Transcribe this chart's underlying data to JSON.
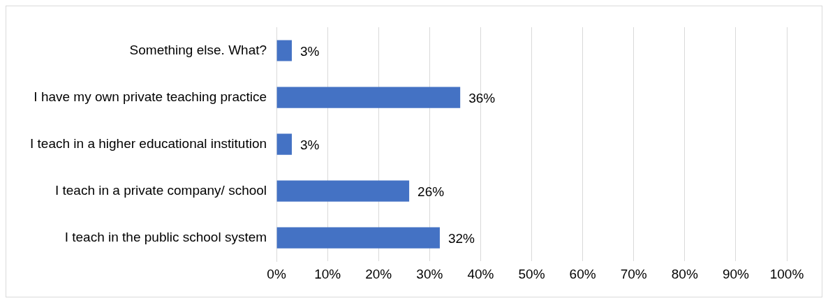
{
  "chart_data": {
    "type": "bar",
    "orientation": "horizontal",
    "categories": [
      "Something else. What?",
      "I have my own private teaching practice",
      "I teach in a higher educational institution",
      "I teach in a private company/ school",
      "I teach in the public school system"
    ],
    "values": [
      3,
      36,
      3,
      26,
      32
    ],
    "value_labels": [
      "3%",
      "36%",
      "3%",
      "26%",
      "32%"
    ],
    "color": "#4472c4",
    "xlim": [
      0,
      100
    ],
    "xticks": [
      {
        "value": 0,
        "label": "0%"
      },
      {
        "value": 10,
        "label": "10%"
      },
      {
        "value": 20,
        "label": "20%"
      },
      {
        "value": 30,
        "label": "30%"
      },
      {
        "value": 40,
        "label": "40%"
      },
      {
        "value": 50,
        "label": "50%"
      },
      {
        "value": 60,
        "label": "60%"
      },
      {
        "value": 70,
        "label": "70%"
      },
      {
        "value": 80,
        "label": "80%"
      },
      {
        "value": 90,
        "label": "90%"
      },
      {
        "value": 100,
        "label": "100%"
      }
    ],
    "grid": "x",
    "legend": false
  }
}
